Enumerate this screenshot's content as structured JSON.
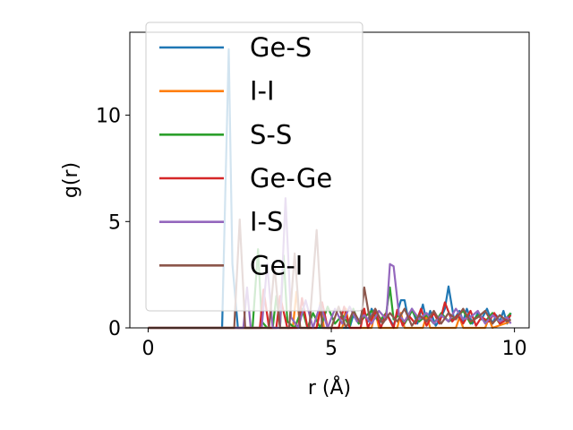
{
  "chart_data": {
    "type": "line",
    "title": "",
    "xlabel": "r (Å)",
    "ylabel": "g(r)",
    "xlim": [
      -0.5,
      10.4
    ],
    "ylim": [
      0,
      13.9
    ],
    "xticks": [
      0,
      5,
      10
    ],
    "yticks": [
      0,
      5,
      10
    ],
    "grid": false,
    "legend_position": "upper-left",
    "series": [
      {
        "name": "Ge-S",
        "color": "#1f77b4",
        "x": [
          0,
          2.0,
          2.02,
          2.2,
          2.3,
          2.45,
          5.5,
          5.6,
          5.75,
          5.85,
          6.0,
          6.1,
          6.3,
          6.5,
          6.7,
          6.9,
          7.0,
          7.1,
          7.2,
          7.35,
          7.5,
          7.6,
          7.7,
          7.85,
          8.0,
          8.1,
          8.2,
          8.35,
          8.5,
          8.6,
          8.7,
          8.85,
          9.0,
          9.1,
          9.25,
          9.4,
          9.5,
          9.6,
          9.7,
          9.8,
          9.9
        ],
        "y": [
          0,
          0,
          0.05,
          13.1,
          3.0,
          0,
          0,
          0.6,
          0.2,
          0.8,
          0.3,
          0.9,
          0.2,
          0.7,
          0.1,
          1.3,
          1.3,
          0.4,
          0.9,
          0.2,
          1.1,
          0.3,
          0.8,
          0.1,
          0.5,
          0.9,
          1.95,
          0.4,
          0.8,
          0.3,
          0.9,
          0.2,
          0.7,
          0.4,
          0.9,
          0.2,
          0.6,
          0.3,
          0.8,
          0.2,
          0.7
        ]
      },
      {
        "name": "I-I",
        "color": "#ff7f0e",
        "x": [
          0,
          3.95,
          4.05,
          4.15,
          4.6,
          4.7,
          4.8,
          5.3,
          5.4,
          5.5,
          6.1,
          6.2,
          6.3,
          6.8,
          6.9,
          7.0,
          7.5,
          7.6,
          7.7,
          8.4,
          8.5,
          8.6,
          9.2,
          9.3,
          9.4,
          9.9
        ],
        "y": [
          0,
          0,
          1.7,
          0,
          0,
          1.2,
          0,
          0,
          0.9,
          0,
          0,
          0.8,
          0,
          0,
          0.7,
          0,
          0,
          0.6,
          0,
          0,
          0.5,
          0,
          0,
          0.45,
          0,
          0.3
        ]
      },
      {
        "name": "S-S",
        "color": "#2ca02c",
        "x": [
          0,
          2.85,
          3.0,
          3.1,
          3.25,
          3.4,
          3.5,
          3.6,
          3.7,
          3.8,
          4.0,
          4.2,
          4.35,
          4.5,
          4.7,
          4.9,
          5.1,
          5.3,
          5.5,
          5.6,
          5.75,
          5.9,
          6.1,
          6.3,
          6.5,
          6.6,
          6.7,
          6.85,
          7.0,
          7.2,
          7.4,
          7.6,
          7.8,
          8.0,
          8.2,
          8.4,
          8.6,
          8.8,
          9.0,
          9.2,
          9.4,
          9.6,
          9.8,
          9.9
        ],
        "y": [
          0,
          0,
          3.7,
          0.3,
          0,
          0,
          1.5,
          0,
          3.4,
          0.3,
          0,
          0.9,
          0,
          0.7,
          0,
          1.0,
          0.2,
          0.6,
          0.1,
          0.9,
          0.2,
          0.5,
          0.8,
          0.3,
          0.7,
          1.9,
          0.4,
          0.6,
          0.2,
          0.8,
          0.3,
          0.6,
          0.2,
          0.7,
          0.3,
          0.5,
          0.8,
          0.2,
          0.6,
          0.3,
          0.7,
          0.2,
          0.5,
          0.7
        ]
      },
      {
        "name": "Ge-Ge",
        "color": "#d62728",
        "x": [
          0,
          3.05,
          3.15,
          3.3,
          3.5,
          3.6,
          3.8,
          4.1,
          4.2,
          4.35,
          4.6,
          4.75,
          4.9,
          5.2,
          5.35,
          5.5,
          5.8,
          5.9,
          6.0,
          6.2,
          6.35,
          6.5,
          6.7,
          6.8,
          6.95,
          7.1,
          7.3,
          7.45,
          7.6,
          7.8,
          7.95,
          8.1,
          8.3,
          8.45,
          8.6,
          8.8,
          8.95,
          9.1,
          9.3,
          9.45,
          9.6,
          9.8,
          9.9
        ],
        "y": [
          0,
          0,
          1.8,
          0,
          0,
          1.5,
          0,
          0,
          1.4,
          0,
          0,
          1.2,
          0,
          0,
          1.0,
          0,
          0,
          0.9,
          0,
          0.8,
          0,
          0.7,
          0,
          0.85,
          0.1,
          0.6,
          0.2,
          0.9,
          0.1,
          0.7,
          0.2,
          1.2,
          0.3,
          0.6,
          0.2,
          0.8,
          0.1,
          0.5,
          0.3,
          0.7,
          0.2,
          0.4,
          0.6
        ]
      },
      {
        "name": "I-S",
        "color": "#9467bd",
        "x": [
          0,
          2.6,
          2.7,
          2.8,
          3.1,
          3.25,
          3.4,
          3.6,
          3.75,
          3.9,
          4.1,
          4.3,
          4.5,
          4.7,
          4.9,
          5.1,
          5.3,
          5.5,
          5.7,
          5.9,
          6.1,
          6.3,
          6.5,
          6.6,
          6.7,
          6.85,
          7.0,
          7.2,
          7.4,
          7.6,
          7.8,
          8.0,
          8.2,
          8.4,
          8.6,
          8.8,
          9.0,
          9.2,
          9.4,
          9.6,
          9.8,
          9.9
        ],
        "y": [
          0,
          0,
          1.9,
          0,
          0,
          3.0,
          0,
          0,
          6.1,
          0.5,
          0,
          1.3,
          0,
          1.1,
          0,
          0.9,
          0.2,
          1.0,
          0.3,
          0.6,
          0.2,
          0.8,
          0.4,
          3.0,
          2.9,
          0.6,
          0.3,
          0.9,
          0.4,
          0.7,
          0.2,
          0.6,
          0.3,
          0.9,
          0.4,
          0.5,
          0.8,
          0.2,
          0.6,
          0.3,
          0.5,
          0.2
        ]
      },
      {
        "name": "Ge-I",
        "color": "#8c564b",
        "x": [
          0,
          2.35,
          2.5,
          2.65,
          3.3,
          3.45,
          3.6,
          3.85,
          4.0,
          4.15,
          4.4,
          4.6,
          4.75,
          5.0,
          5.2,
          5.4,
          5.6,
          5.8,
          5.9,
          6.05,
          6.2,
          6.4,
          6.6,
          6.8,
          7.0,
          7.2,
          7.4,
          7.6,
          7.8,
          8.0,
          8.2,
          8.4,
          8.6,
          8.8,
          9.0,
          9.2,
          9.4,
          9.6,
          9.8,
          9.9
        ],
        "y": [
          0,
          0,
          5.1,
          0,
          0,
          2.9,
          0,
          0,
          3.5,
          0,
          0,
          4.6,
          0,
          0,
          1.0,
          0,
          0.8,
          0.2,
          1.9,
          0.4,
          0.9,
          0.2,
          0.7,
          0.3,
          0.9,
          0.1,
          0.6,
          0.3,
          0.8,
          0.2,
          0.7,
          0.4,
          0.9,
          0.3,
          0.5,
          0.8,
          0.2,
          0.6,
          0.3,
          0.4
        ]
      }
    ]
  }
}
